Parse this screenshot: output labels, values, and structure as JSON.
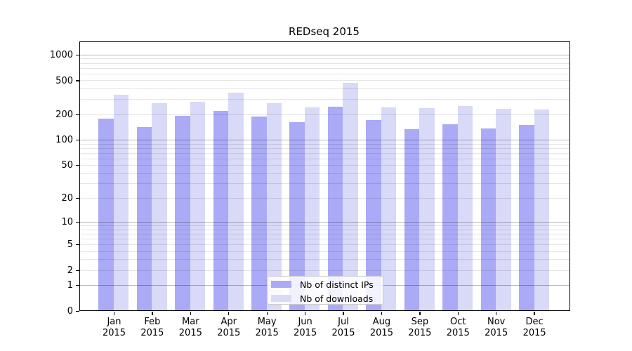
{
  "chart_data": {
    "type": "bar",
    "title": "REDseq 2015",
    "categories": [
      "Jan",
      "Feb",
      "Mar",
      "Apr",
      "May",
      "Jun",
      "Jul",
      "Aug",
      "Sep",
      "Oct",
      "Nov",
      "Dec"
    ],
    "x_year_label": "2015",
    "series": [
      {
        "name": "Nb of distinct IPs",
        "color": "#aaaaf7",
        "values": [
          177,
          140,
          191,
          219,
          187,
          161,
          246,
          172,
          134,
          152,
          135,
          150
        ]
      },
      {
        "name": "Nb of downloads",
        "color": "#d9d9f8",
        "values": [
          339,
          268,
          282,
          357,
          270,
          242,
          469,
          240,
          237,
          250,
          232,
          227
        ]
      }
    ],
    "y_scale": "log1p",
    "ylim": [
      0,
      1450
    ],
    "y_ticks": [
      1000,
      500,
      200,
      100,
      50,
      20,
      10,
      5,
      2,
      1,
      0
    ],
    "y_gridlines": {
      "major": [
        1,
        10,
        100,
        1000
      ],
      "minor": [
        2,
        3,
        4,
        5,
        6,
        7,
        8,
        9,
        20,
        30,
        40,
        50,
        60,
        70,
        80,
        90,
        200,
        300,
        400,
        500,
        600,
        700,
        800,
        900
      ]
    },
    "grid": "horizontal",
    "legend_position": "lower center",
    "colors": {
      "spine": "#000000",
      "tick_label": "#000000",
      "legend_border": "#cccccc"
    }
  }
}
